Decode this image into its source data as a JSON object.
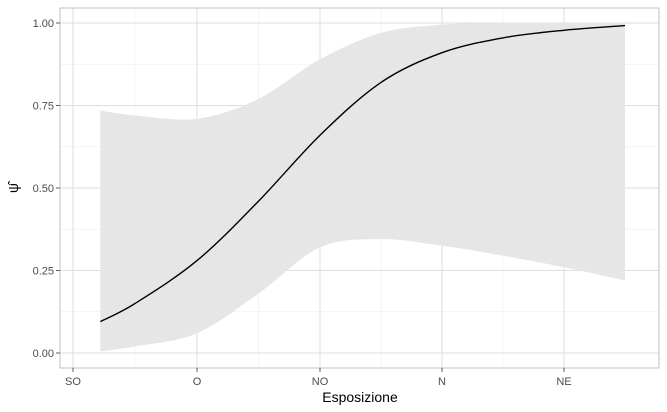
{
  "chart_data": {
    "type": "line",
    "title": "",
    "xlabel": "Esposizione",
    "ylabel": "ψ̂",
    "x_categories": [
      "SO",
      "O",
      "NO",
      "N",
      "NE"
    ],
    "ylim": [
      0.0,
      1.0
    ],
    "y_ticks": [
      "0.00",
      "0.25",
      "0.50",
      "0.75",
      "1.00"
    ],
    "grid": true,
    "legend": "none",
    "colors": {
      "line": "#000000",
      "band": "#e6e6e6",
      "grid_major": "#dedede",
      "grid_minor": "#efefef",
      "panel_border": "#b3b3b3"
    },
    "series": [
      {
        "x": [
          0.22,
          0.5,
          1.0,
          1.5,
          2.0,
          2.5,
          3.0,
          3.5,
          4.0,
          4.5,
          4.5
        ],
        "y": [
          0.095,
          0.15,
          0.28,
          0.46,
          0.66,
          0.82,
          0.91,
          0.955,
          0.978,
          0.99,
          0.992
        ],
        "lower": [
          0.005,
          0.02,
          0.06,
          0.18,
          0.32,
          0.345,
          0.325,
          0.295,
          0.26,
          0.22,
          0.22
        ],
        "upper": [
          0.735,
          0.72,
          0.71,
          0.77,
          0.89,
          0.97,
          0.995,
          1.0,
          1.0,
          1.0,
          1.0
        ]
      }
    ]
  }
}
